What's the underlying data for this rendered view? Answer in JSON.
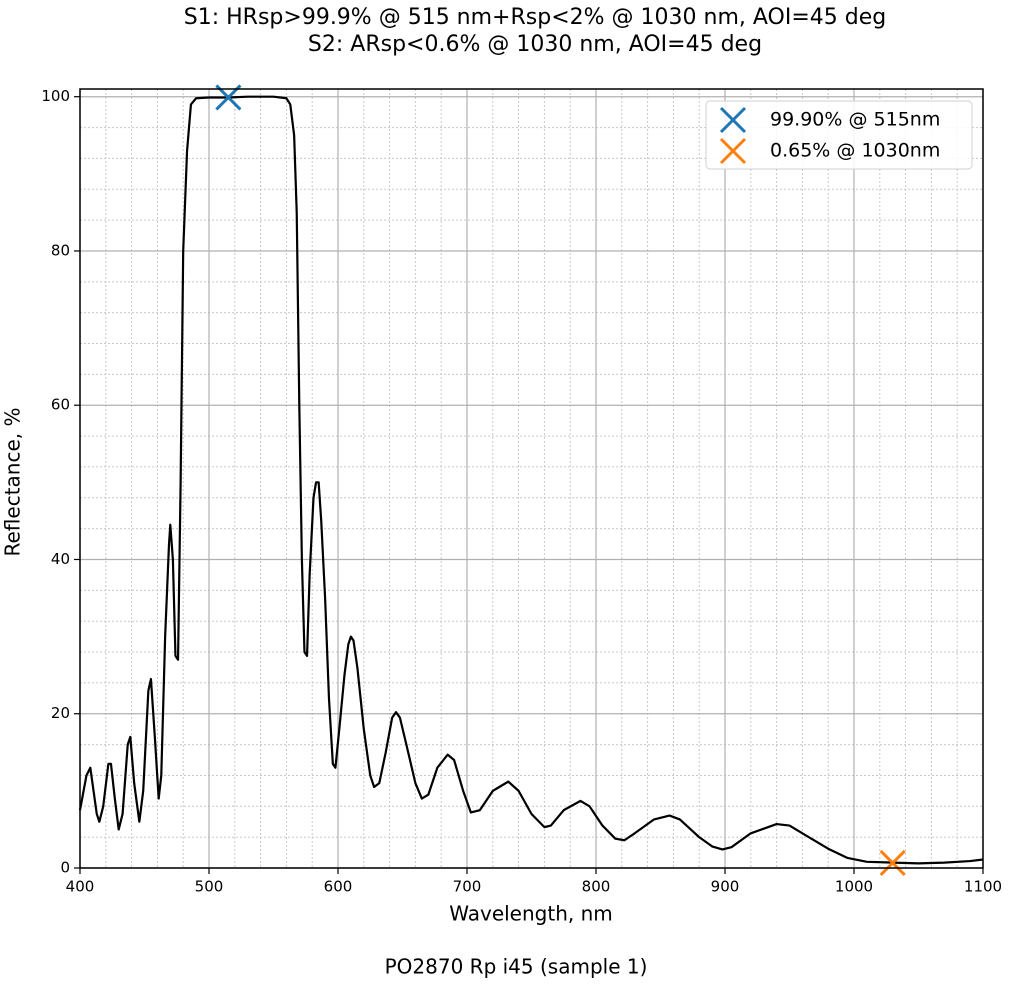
{
  "chart_data": {
    "type": "line",
    "title": [
      "S1: HRsp>99.9% @ 515 nm+Rsp<2% @ 1030 nm, AOI=45 deg",
      "S2: ARsp<0.6% @ 1030 nm, AOI=45 deg"
    ],
    "xlabel": "Wavelength, nm",
    "ylabel": "Reflectance, %",
    "caption": "PO2870 Rp i45 (sample 1)",
    "x": [
      400,
      405,
      408,
      413,
      415,
      418,
      422,
      424,
      427,
      430,
      433,
      437,
      439,
      442,
      446,
      449,
      453,
      455,
      458,
      461,
      463,
      466,
      469,
      470,
      472,
      474,
      476,
      478,
      480,
      483,
      486,
      490,
      500,
      515,
      530,
      550,
      560,
      563,
      566,
      568,
      570,
      572,
      574,
      576,
      578,
      581,
      583,
      585,
      587,
      590,
      593,
      596,
      598,
      601,
      605,
      608,
      610,
      612,
      615,
      620,
      625,
      628,
      632,
      637,
      642,
      645,
      648,
      653,
      660,
      665,
      670,
      677,
      685,
      690,
      697,
      703,
      710,
      720,
      732,
      740,
      750,
      760,
      765,
      775,
      788,
      795,
      805,
      815,
      822,
      830,
      845,
      857,
      865,
      880,
      890,
      898,
      905,
      920,
      940,
      950,
      965,
      980,
      995,
      1010,
      1030,
      1050,
      1070,
      1090,
      1100
    ],
    "series": [
      {
        "color": "#000000",
        "values": [
          7.5,
          12,
          13,
          7,
          6,
          8,
          13.5,
          13.5,
          9,
          5,
          7,
          16,
          17,
          11,
          6,
          10,
          23,
          24.5,
          17,
          9,
          12,
          30,
          42,
          44.5,
          40,
          27.5,
          27,
          50,
          80,
          93,
          99,
          99.8,
          99.9,
          99.9,
          100,
          100,
          99.8,
          99,
          95,
          85,
          60,
          40,
          28,
          27.5,
          38,
          48,
          50,
          50,
          45,
          35,
          22,
          13.5,
          13,
          18,
          25,
          29,
          30,
          29.5,
          26,
          18,
          12,
          10.5,
          11,
          15,
          19.5,
          20.2,
          19.5,
          16,
          11,
          9,
          9.5,
          13,
          14.7,
          14,
          10,
          7.2,
          7.5,
          10,
          11.2,
          10,
          7,
          5.3,
          5.5,
          7.5,
          8.7,
          8,
          5.5,
          3.8,
          3.6,
          4.5,
          6.3,
          6.8,
          6.3,
          4,
          2.8,
          2.4,
          2.7,
          4.5,
          5.7,
          5.5,
          4,
          2.5,
          1.3,
          0.8,
          0.7,
          0.6,
          0.7,
          0.9,
          1.1
        ]
      }
    ],
    "markers": [
      {
        "name": "99.90% @ 515nm",
        "color": "#1f77b4",
        "x": 515,
        "y": 99.9
      },
      {
        "name": "0.65% @ 1030nm",
        "color": "#ff7f0e",
        "x": 1030,
        "y": 0.65
      }
    ],
    "legend": "upper right",
    "xlim": [
      400,
      1100
    ],
    "ylim": [
      0,
      101
    ],
    "xticks": [
      400,
      500,
      600,
      700,
      800,
      900,
      1000,
      1100
    ],
    "yticks": [
      0,
      20,
      40,
      60,
      80,
      100
    ],
    "xminorticks": [
      420,
      440,
      460,
      480,
      520,
      540,
      560,
      580,
      620,
      640,
      660,
      680,
      720,
      740,
      760,
      780,
      820,
      840,
      860,
      880,
      920,
      940,
      960,
      980,
      1020,
      1040,
      1060,
      1080
    ],
    "yminorticks": [
      4,
      8,
      12,
      16,
      24,
      28,
      32,
      36,
      44,
      48,
      52,
      56,
      64,
      68,
      72,
      76,
      84,
      88,
      92,
      96
    ],
    "grid": true
  }
}
